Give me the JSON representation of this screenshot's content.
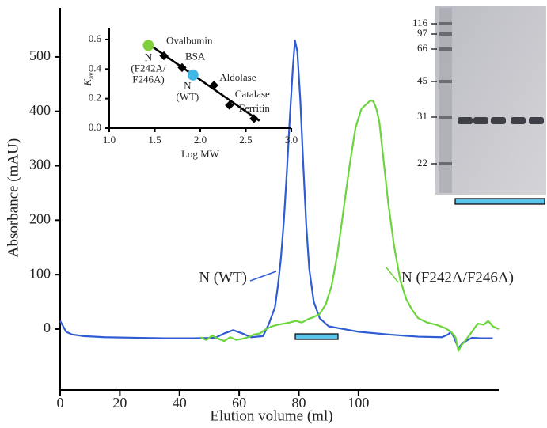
{
  "chart_data": [
    {
      "type": "line",
      "xlabel": "Elution volume (ml)",
      "ylabel": "Absorbance (mAU)",
      "xlim": [
        0,
        147
      ],
      "ylim": [
        -112,
        590
      ],
      "xticks": [
        0,
        20,
        40,
        60,
        80,
        100
      ],
      "yticks": [
        0,
        100,
        200,
        300,
        400,
        500
      ],
      "series": [
        {
          "name": "N (WT)",
          "color": "#2f5bd3",
          "x": [
            0,
            1,
            2,
            4,
            8,
            15,
            25,
            35,
            45,
            52,
            55,
            58,
            61,
            64,
            68,
            70,
            72,
            73,
            74,
            75,
            76,
            77,
            78,
            78.7,
            79.5,
            80.5,
            81.5,
            82.5,
            83.5,
            85,
            87,
            90,
            95,
            100,
            110,
            120,
            128,
            130,
            131,
            132,
            133.5,
            135,
            138,
            141,
            145
          ],
          "values": [
            15,
            5,
            -5,
            -10,
            -13,
            -15,
            -16,
            -17,
            -17,
            -16,
            -8,
            -2,
            -8,
            -15,
            -13,
            10,
            40,
            80,
            130,
            200,
            290,
            390,
            480,
            530,
            510,
            420,
            300,
            190,
            110,
            50,
            20,
            5,
            0,
            -5,
            -10,
            -14,
            -15,
            -10,
            -5,
            -15,
            -35,
            -25,
            -16,
            -17,
            -17
          ]
        },
        {
          "name": "N (F242A/F246A)",
          "color": "#6cd43c",
          "x": [
            47,
            49,
            51,
            53,
            55,
            57,
            59,
            61,
            63,
            65,
            67,
            69,
            71,
            73,
            75,
            77,
            79,
            81,
            83,
            85,
            87,
            89,
            91,
            93,
            95,
            97,
            99,
            101,
            103,
            104,
            105,
            106,
            107,
            108,
            110,
            112,
            114,
            116,
            118,
            120,
            123,
            126,
            129,
            131,
            132.5,
            133.5,
            134.5,
            136,
            138,
            140,
            142,
            143.5,
            145,
            147
          ],
          "values": [
            -15,
            -20,
            -12,
            -18,
            -22,
            -15,
            -20,
            -18,
            -15,
            -10,
            -8,
            0,
            5,
            8,
            10,
            12,
            15,
            12,
            18,
            22,
            28,
            45,
            80,
            140,
            220,
            300,
            370,
            405,
            415,
            420,
            418,
            405,
            380,
            330,
            230,
            150,
            90,
            55,
            35,
            20,
            12,
            8,
            2,
            -5,
            -15,
            -40,
            -30,
            -20,
            -5,
            10,
            8,
            15,
            5,
            0
          ]
        }
      ]
    },
    {
      "type": "scatter",
      "xlabel": "Log MW",
      "ylabel": {
        "main": "K",
        "sub": "av"
      },
      "xlim": [
        1,
        3
      ],
      "ylim": [
        0,
        0.68
      ],
      "xticks": [
        {
          "value": 1,
          "label": "1.0"
        },
        1.5,
        {
          "value": 2,
          "label": "2.0"
        },
        2.5,
        {
          "value": 3,
          "label": "3.0"
        }
      ],
      "yticks": [
        {
          "value": 0,
          "label": "0.0"
        },
        0.2,
        0.4,
        0.6
      ],
      "standards": {
        "color": "#000000",
        "labels": [
          "Ovalbumin",
          "BSA",
          "Aldolase",
          "Catalase",
          "Ferritin"
        ],
        "x": [
          1.6,
          1.8,
          2.15,
          2.32,
          2.59
        ],
        "values": [
          0.49,
          0.41,
          0.29,
          0.155,
          0.065
        ]
      },
      "fit": {
        "color": "#000000",
        "x": [
          1.43,
          2.65
        ],
        "values": [
          0.57,
          0.05
        ]
      },
      "samples": [
        {
          "label_lines": [
            "N",
            "(F242A/",
            "F246A)"
          ],
          "color": "#7fd03a",
          "x": [
            1.43
          ],
          "values": [
            0.56
          ]
        },
        {
          "label_lines": [
            "N",
            "(WT)"
          ],
          "color": "#3fb8e8",
          "x": [
            1.92
          ],
          "values": [
            0.36
          ]
        }
      ]
    },
    {
      "type": "gel",
      "markers": [
        116,
        97,
        66,
        45,
        31,
        22
      ],
      "bar_color": "#5bc4ea"
    }
  ]
}
